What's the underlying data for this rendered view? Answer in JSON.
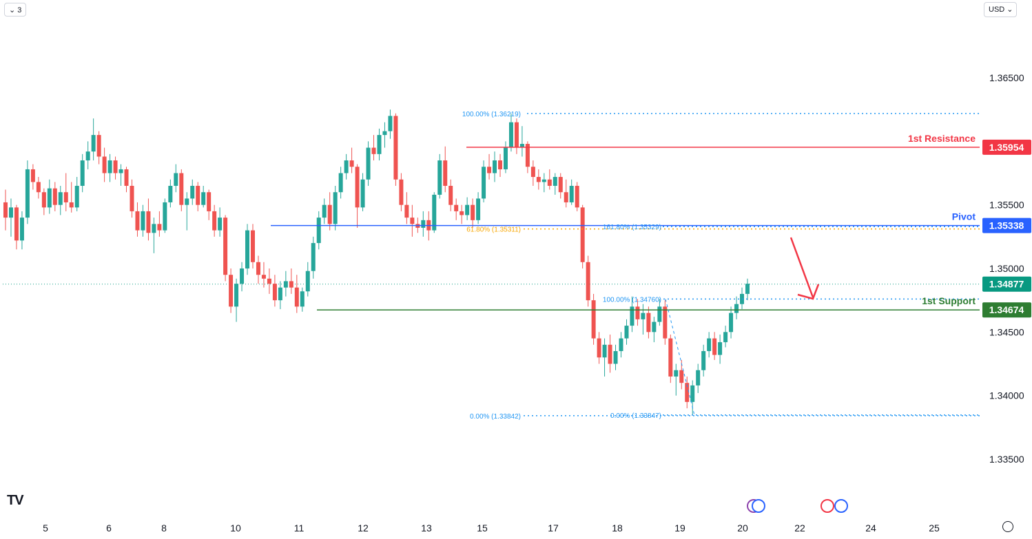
{
  "toolbar": {
    "interval_label": "⌄ 3",
    "currency_label": "USD ⌄"
  },
  "colors": {
    "bull": "#26a69a",
    "bear": "#ef5350",
    "resistance": "#f23645",
    "pivot": "#2962ff",
    "support": "#2e7d32",
    "fib": "#2196f3",
    "fib_orange": "#f7a600",
    "current": "#089981"
  },
  "chart_data": {
    "type": "candlestick",
    "ylim": [
      1.332,
      1.368
    ],
    "yticks": [
      "1.36500",
      "1.35500",
      "1.35000",
      "1.34500",
      "1.34000",
      "1.33500"
    ],
    "xticks": [
      "5",
      "6",
      "8",
      "10",
      "11",
      "12",
      "13",
      "15",
      "17",
      "18",
      "19",
      "20",
      "22",
      "24",
      "25"
    ],
    "levels": {
      "resistance": {
        "label": "1st Resistance",
        "value": 1.35954,
        "tag": "1.35954"
      },
      "pivot": {
        "label": "Pivot",
        "value": 1.35338,
        "tag": "1.35338"
      },
      "support": {
        "label": "1st Support",
        "value": 1.34674,
        "tag": "1.34674"
      },
      "current": {
        "value": 1.34877,
        "tag": "1.34877"
      }
    },
    "fib_labels": {
      "a": "100.00% (1.36219)",
      "b": "61.80% (1.35311)",
      "c": "0.00% (1.33842)",
      "d": "100.00% (1.34760)",
      "e": "161.80% (1.35329)",
      "f": "0.00% (1.33847)"
    },
    "fib_values": {
      "a": 1.36219,
      "b": 1.35311,
      "c": 1.33842,
      "d": 1.3476,
      "e": 1.35329,
      "f": 1.33847
    },
    "ohlc": [
      [
        1.3552,
        1.3562,
        1.353,
        1.354
      ],
      [
        1.354,
        1.3555,
        1.3525,
        1.3548
      ],
      [
        1.3548,
        1.355,
        1.3515,
        1.3522
      ],
      [
        1.3522,
        1.3545,
        1.3515,
        1.354
      ],
      [
        1.354,
        1.3585,
        1.3535,
        1.3578
      ],
      [
        1.3578,
        1.3582,
        1.3562,
        1.3568
      ],
      [
        1.3568,
        1.3572,
        1.3555,
        1.356
      ],
      [
        1.356,
        1.3563,
        1.3542,
        1.3548
      ],
      [
        1.3548,
        1.357,
        1.3543,
        1.3563
      ],
      [
        1.3563,
        1.3568,
        1.3545,
        1.355
      ],
      [
        1.355,
        1.3565,
        1.3542,
        1.356
      ],
      [
        1.356,
        1.3575,
        1.3545,
        1.3552
      ],
      [
        1.3552,
        1.3568,
        1.3544,
        1.3548
      ],
      [
        1.3548,
        1.3572,
        1.3545,
        1.3565
      ],
      [
        1.3565,
        1.359,
        1.356,
        1.3585
      ],
      [
        1.3585,
        1.36,
        1.3578,
        1.3592
      ],
      [
        1.3592,
        1.3618,
        1.3585,
        1.3605
      ],
      [
        1.3605,
        1.3608,
        1.3582,
        1.3588
      ],
      [
        1.3588,
        1.3595,
        1.3568,
        1.3575
      ],
      [
        1.3575,
        1.359,
        1.3568,
        1.3585
      ],
      [
        1.3585,
        1.3588,
        1.357,
        1.3575
      ],
      [
        1.3575,
        1.3582,
        1.3565,
        1.3578
      ],
      [
        1.3578,
        1.358,
        1.356,
        1.3565
      ],
      [
        1.3565,
        1.357,
        1.354,
        1.3545
      ],
      [
        1.3545,
        1.3552,
        1.3525,
        1.353
      ],
      [
        1.353,
        1.355,
        1.3525,
        1.3545
      ],
      [
        1.3545,
        1.3555,
        1.3522,
        1.3528
      ],
      [
        1.3528,
        1.354,
        1.3512,
        1.3535
      ],
      [
        1.3535,
        1.3545,
        1.3525,
        1.353
      ],
      [
        1.353,
        1.3555,
        1.3528,
        1.3552
      ],
      [
        1.3552,
        1.357,
        1.3548,
        1.3565
      ],
      [
        1.3565,
        1.3582,
        1.356,
        1.3575
      ],
      [
        1.3575,
        1.3578,
        1.3545,
        1.355
      ],
      [
        1.355,
        1.356,
        1.353,
        1.3555
      ],
      [
        1.3555,
        1.357,
        1.355,
        1.3565
      ],
      [
        1.3565,
        1.3568,
        1.3545,
        1.355
      ],
      [
        1.355,
        1.3565,
        1.3548,
        1.356
      ],
      [
        1.356,
        1.3562,
        1.3538,
        1.3545
      ],
      [
        1.3545,
        1.355,
        1.3525,
        1.353
      ],
      [
        1.353,
        1.3548,
        1.3525,
        1.354
      ],
      [
        1.354,
        1.3542,
        1.349,
        1.3495
      ],
      [
        1.3495,
        1.35,
        1.3465,
        1.347
      ],
      [
        1.347,
        1.3492,
        1.3458,
        1.3488
      ],
      [
        1.3488,
        1.3505,
        1.3482,
        1.35
      ],
      [
        1.35,
        1.3535,
        1.3495,
        1.353
      ],
      [
        1.353,
        1.3535,
        1.35,
        1.3505
      ],
      [
        1.3505,
        1.351,
        1.3488,
        1.3495
      ],
      [
        1.3495,
        1.3505,
        1.3485,
        1.3492
      ],
      [
        1.3492,
        1.35,
        1.348,
        1.3488
      ],
      [
        1.3488,
        1.3495,
        1.347,
        1.3475
      ],
      [
        1.3475,
        1.349,
        1.3468,
        1.3485
      ],
      [
        1.3485,
        1.3498,
        1.3478,
        1.349
      ],
      [
        1.349,
        1.35,
        1.348,
        1.3485
      ],
      [
        1.3485,
        1.3495,
        1.3465,
        1.347
      ],
      [
        1.347,
        1.3485,
        1.3466,
        1.3482
      ],
      [
        1.3482,
        1.3505,
        1.3478,
        1.3498
      ],
      [
        1.3498,
        1.3525,
        1.3492,
        1.352
      ],
      [
        1.352,
        1.3545,
        1.3515,
        1.354
      ],
      [
        1.354,
        1.3555,
        1.3535,
        1.355
      ],
      [
        1.355,
        1.356,
        1.353,
        1.3535
      ],
      [
        1.3535,
        1.3565,
        1.353,
        1.356
      ],
      [
        1.356,
        1.358,
        1.3555,
        1.3575
      ],
      [
        1.3575,
        1.359,
        1.357,
        1.3585
      ],
      [
        1.3585,
        1.3595,
        1.3575,
        1.358
      ],
      [
        1.358,
        1.3582,
        1.3532,
        1.3548
      ],
      [
        1.3548,
        1.3575,
        1.3545,
        1.357
      ],
      [
        1.357,
        1.36,
        1.3565,
        1.3595
      ],
      [
        1.3595,
        1.3605,
        1.3585,
        1.359
      ],
      [
        1.359,
        1.361,
        1.3585,
        1.3605
      ],
      [
        1.3605,
        1.3615,
        1.3595,
        1.3608
      ],
      [
        1.3608,
        1.3625,
        1.3602,
        1.362
      ],
      [
        1.362,
        1.3622,
        1.3565,
        1.357
      ],
      [
        1.357,
        1.3575,
        1.3545,
        1.355
      ],
      [
        1.355,
        1.356,
        1.3535,
        1.354
      ],
      [
        1.354,
        1.355,
        1.3525,
        1.3535
      ],
      [
        1.3535,
        1.354,
        1.3528,
        1.3532
      ],
      [
        1.3532,
        1.3545,
        1.3525,
        1.3538
      ],
      [
        1.3538,
        1.3545,
        1.3522,
        1.353
      ],
      [
        1.353,
        1.356,
        1.3528,
        1.3558
      ],
      [
        1.3558,
        1.359,
        1.3555,
        1.3585
      ],
      [
        1.3585,
        1.3596,
        1.356,
        1.3565
      ],
      [
        1.3565,
        1.357,
        1.3545,
        1.355
      ],
      [
        1.355,
        1.3555,
        1.3538,
        1.3545
      ],
      [
        1.3545,
        1.355,
        1.3535,
        1.3542
      ],
      [
        1.3542,
        1.3556,
        1.3538,
        1.355
      ],
      [
        1.355,
        1.3555,
        1.3532,
        1.3538
      ],
      [
        1.3538,
        1.356,
        1.3535,
        1.3555
      ],
      [
        1.3555,
        1.3585,
        1.3552,
        1.358
      ],
      [
        1.358,
        1.359,
        1.357,
        1.3575
      ],
      [
        1.3575,
        1.3592,
        1.3568,
        1.3585
      ],
      [
        1.3585,
        1.359,
        1.3572,
        1.3578
      ],
      [
        1.3578,
        1.36,
        1.3575,
        1.3595
      ],
      [
        1.3595,
        1.3622,
        1.3592,
        1.3615
      ],
      [
        1.3615,
        1.3618,
        1.359,
        1.3595
      ],
      [
        1.3595,
        1.3612,
        1.3588,
        1.3598
      ],
      [
        1.3598,
        1.36,
        1.3575,
        1.358
      ],
      [
        1.358,
        1.3585,
        1.3565,
        1.3572
      ],
      [
        1.3572,
        1.3578,
        1.3562,
        1.3568
      ],
      [
        1.3568,
        1.3575,
        1.356,
        1.357
      ],
      [
        1.357,
        1.3578,
        1.3562,
        1.3565
      ],
      [
        1.3565,
        1.3575,
        1.3558,
        1.3572
      ],
      [
        1.3572,
        1.3575,
        1.3555,
        1.356
      ],
      [
        1.356,
        1.357,
        1.3548,
        1.3552
      ],
      [
        1.3552,
        1.357,
        1.355,
        1.3565
      ],
      [
        1.3565,
        1.3568,
        1.3545,
        1.3548
      ],
      [
        1.3548,
        1.355,
        1.35,
        1.3505
      ],
      [
        1.3505,
        1.351,
        1.347,
        1.3475
      ],
      [
        1.3475,
        1.348,
        1.344,
        1.3445
      ],
      [
        1.3445,
        1.345,
        1.3425,
        1.343
      ],
      [
        1.343,
        1.3445,
        1.3415,
        1.344
      ],
      [
        1.344,
        1.3448,
        1.3418,
        1.3425
      ],
      [
        1.3425,
        1.344,
        1.342,
        1.3435
      ],
      [
        1.3435,
        1.345,
        1.343,
        1.3445
      ],
      [
        1.3445,
        1.346,
        1.344,
        1.3455
      ],
      [
        1.3455,
        1.3478,
        1.345,
        1.347
      ],
      [
        1.347,
        1.3476,
        1.3455,
        1.346
      ],
      [
        1.346,
        1.3472,
        1.3448,
        1.3465
      ],
      [
        1.3465,
        1.347,
        1.3445,
        1.345
      ],
      [
        1.345,
        1.3462,
        1.3442,
        1.3458
      ],
      [
        1.3458,
        1.3476,
        1.3455,
        1.347
      ],
      [
        1.347,
        1.3475,
        1.344,
        1.3445
      ],
      [
        1.3445,
        1.3448,
        1.341,
        1.3415
      ],
      [
        1.3415,
        1.3425,
        1.34,
        1.342
      ],
      [
        1.342,
        1.3428,
        1.3405,
        1.341
      ],
      [
        1.341,
        1.3415,
        1.339,
        1.3395
      ],
      [
        1.3395,
        1.3412,
        1.3385,
        1.3408
      ],
      [
        1.3408,
        1.3425,
        1.3402,
        1.342
      ],
      [
        1.342,
        1.344,
        1.3415,
        1.3435
      ],
      [
        1.3435,
        1.345,
        1.343,
        1.3445
      ],
      [
        1.3445,
        1.345,
        1.3428,
        1.3432
      ],
      [
        1.3432,
        1.3448,
        1.3425,
        1.3442
      ],
      [
        1.3442,
        1.3455,
        1.3438,
        1.345
      ],
      [
        1.345,
        1.347,
        1.3445,
        1.3465
      ],
      [
        1.3465,
        1.3478,
        1.346,
        1.3472
      ],
      [
        1.3472,
        1.3485,
        1.3468,
        1.348
      ],
      [
        1.348,
        1.3492,
        1.3475,
        1.3488
      ]
    ]
  }
}
